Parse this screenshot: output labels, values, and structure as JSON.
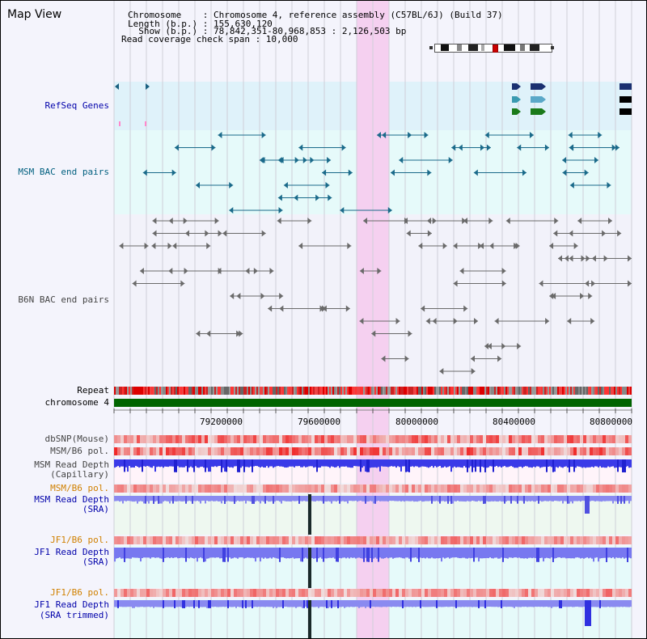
{
  "header": {
    "title": "Map View",
    "chromosome_line": "Chromosome    : Chromosome 4, reference assembly (C57BL/6J) (Build 37)",
    "length_line": "Length (b.p.) : 155,630,120",
    "show_line": "  Show (b.p.) : 78,842,351-80,968,853 : 2,126,503 bp",
    "coverage_line": "Read coverage check span : 10,000"
  },
  "tracks": {
    "refseq": "RefSeq Genes",
    "msm_bac": "MSM BAC end pairs",
    "b6n_bac": "B6N BAC end pairs",
    "repeat": "Repeat",
    "chromosome": "chromosome 4",
    "dbsnp": "dbSNP(Mouse)",
    "msm_b6_pol_1": "MSM/B6 pol.",
    "msm_depth_cap_1": "MSM Read Depth",
    "msm_depth_cap_2": "(Capillary)",
    "msm_b6_pol_2": "MSM/B6 pol.",
    "msm_depth_sra_1": "MSM Read Depth",
    "msm_depth_sra_2": "(SRA)",
    "jf1_b6_pol_1": "JF1/B6 pol.",
    "jf1_depth_sra_1": "JF1 Read Depth",
    "jf1_depth_sra_2": "(SRA)",
    "jf1_b6_pol_2": "JF1/B6 pol.",
    "jf1_depth_trim_1": "JF1 Read Depth",
    "jf1_depth_trim_2": "(SRA trimmed)"
  },
  "axis": {
    "ticks": [
      "79200000",
      "79600000",
      "80000000",
      "80400000",
      "80800000"
    ]
  },
  "colors": {
    "highlight": "#f5d0f0",
    "refseq_bg": "#dff2fa",
    "msm_bac_bg": "#e6fafa",
    "chromosome": "#006400",
    "depth_blue": "#3030e0",
    "depth_light": "#7070f0"
  }
}
